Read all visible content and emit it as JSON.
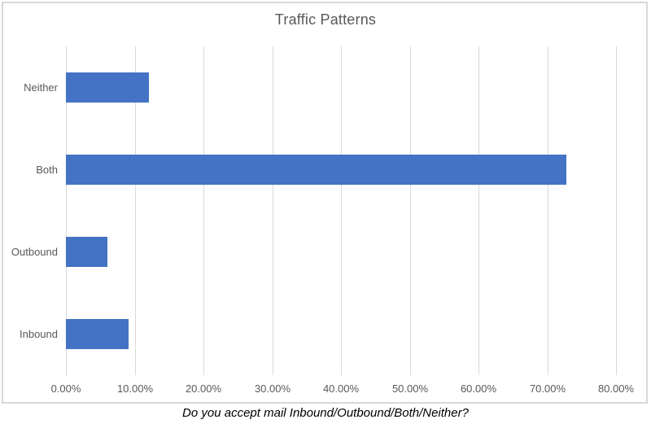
{
  "chart_data": {
    "type": "bar",
    "orientation": "horizontal",
    "title": "Traffic Patterns",
    "categories": [
      "Neither",
      "Both",
      "Outbound",
      "Inbound"
    ],
    "values": [
      12.12,
      72.73,
      6.06,
      9.09
    ],
    "value_unit": "%",
    "x_ticks": [
      "0.00%",
      "10.00%",
      "20.00%",
      "30.00%",
      "40.00%",
      "50.00%",
      "60.00%",
      "70.00%",
      "80.00%"
    ],
    "xlim": [
      0,
      80
    ],
    "xlabel": "",
    "ylabel": "",
    "grid": "vertical-only",
    "legend": "none",
    "bar_color": "#4472C4",
    "gridline_color": "#D9D9D9",
    "frame_border_color": "#D9D9D9",
    "axis_text_color": "#595959",
    "title_color": "#595959"
  },
  "caption": "Do you accept mail Inbound/Outbound/Both/Neither?"
}
